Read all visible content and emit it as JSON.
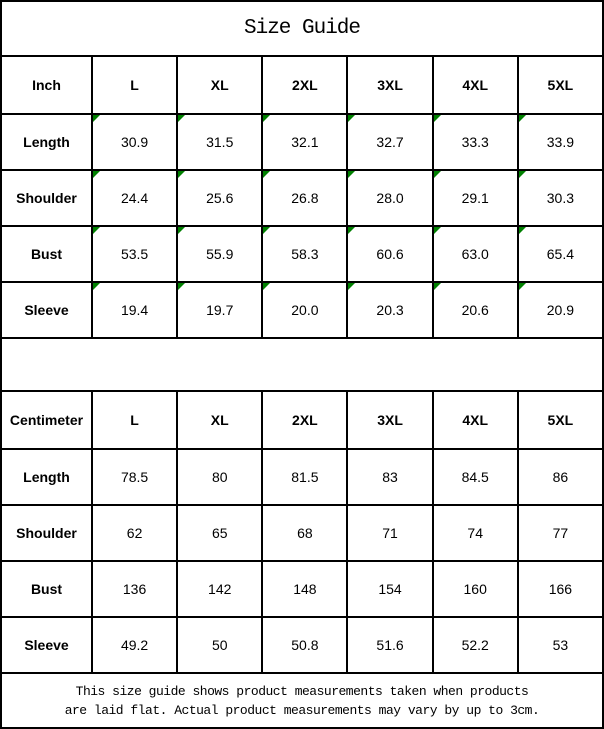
{
  "title": "Size Guide",
  "colors": {
    "border": "#000000",
    "background": "#ffffff",
    "text": "#000000",
    "cell_marker_green": "#008000"
  },
  "icons": {
    "cell_marker": "green-corner-triangle"
  },
  "tables": {
    "inch": {
      "unit_label": "Inch",
      "columns": [
        "L",
        "XL",
        "2XL",
        "3XL",
        "4XL",
        "5XL"
      ],
      "cell_markers": true,
      "rows": [
        {
          "label": "Length",
          "values": [
            "30.9",
            "31.5",
            "32.1",
            "32.7",
            "33.3",
            "33.9"
          ]
        },
        {
          "label": "Shoulder",
          "values": [
            "24.4",
            "25.6",
            "26.8",
            "28.0",
            "29.1",
            "30.3"
          ]
        },
        {
          "label": "Bust",
          "values": [
            "53.5",
            "55.9",
            "58.3",
            "60.6",
            "63.0",
            "65.4"
          ]
        },
        {
          "label": "Sleeve",
          "values": [
            "19.4",
            "19.7",
            "20.0",
            "20.3",
            "20.6",
            "20.9"
          ]
        }
      ]
    },
    "centimeter": {
      "unit_label": "Centimeter",
      "columns": [
        "L",
        "XL",
        "2XL",
        "3XL",
        "4XL",
        "5XL"
      ],
      "cell_markers": false,
      "rows": [
        {
          "label": "Length",
          "values": [
            "78.5",
            "80",
            "81.5",
            "83",
            "84.5",
            "86"
          ]
        },
        {
          "label": "Shoulder",
          "values": [
            "62",
            "65",
            "68",
            "71",
            "74",
            "77"
          ]
        },
        {
          "label": "Bust",
          "values": [
            "136",
            "142",
            "148",
            "154",
            "160",
            "166"
          ]
        },
        {
          "label": "Sleeve",
          "values": [
            "49.2",
            "50",
            "50.8",
            "51.6",
            "52.2",
            "53"
          ]
        }
      ]
    }
  },
  "footer": {
    "line1": "This size guide shows product measurements taken when products",
    "line2": "are laid flat. Actual product measurements may vary by up to 3cm."
  }
}
